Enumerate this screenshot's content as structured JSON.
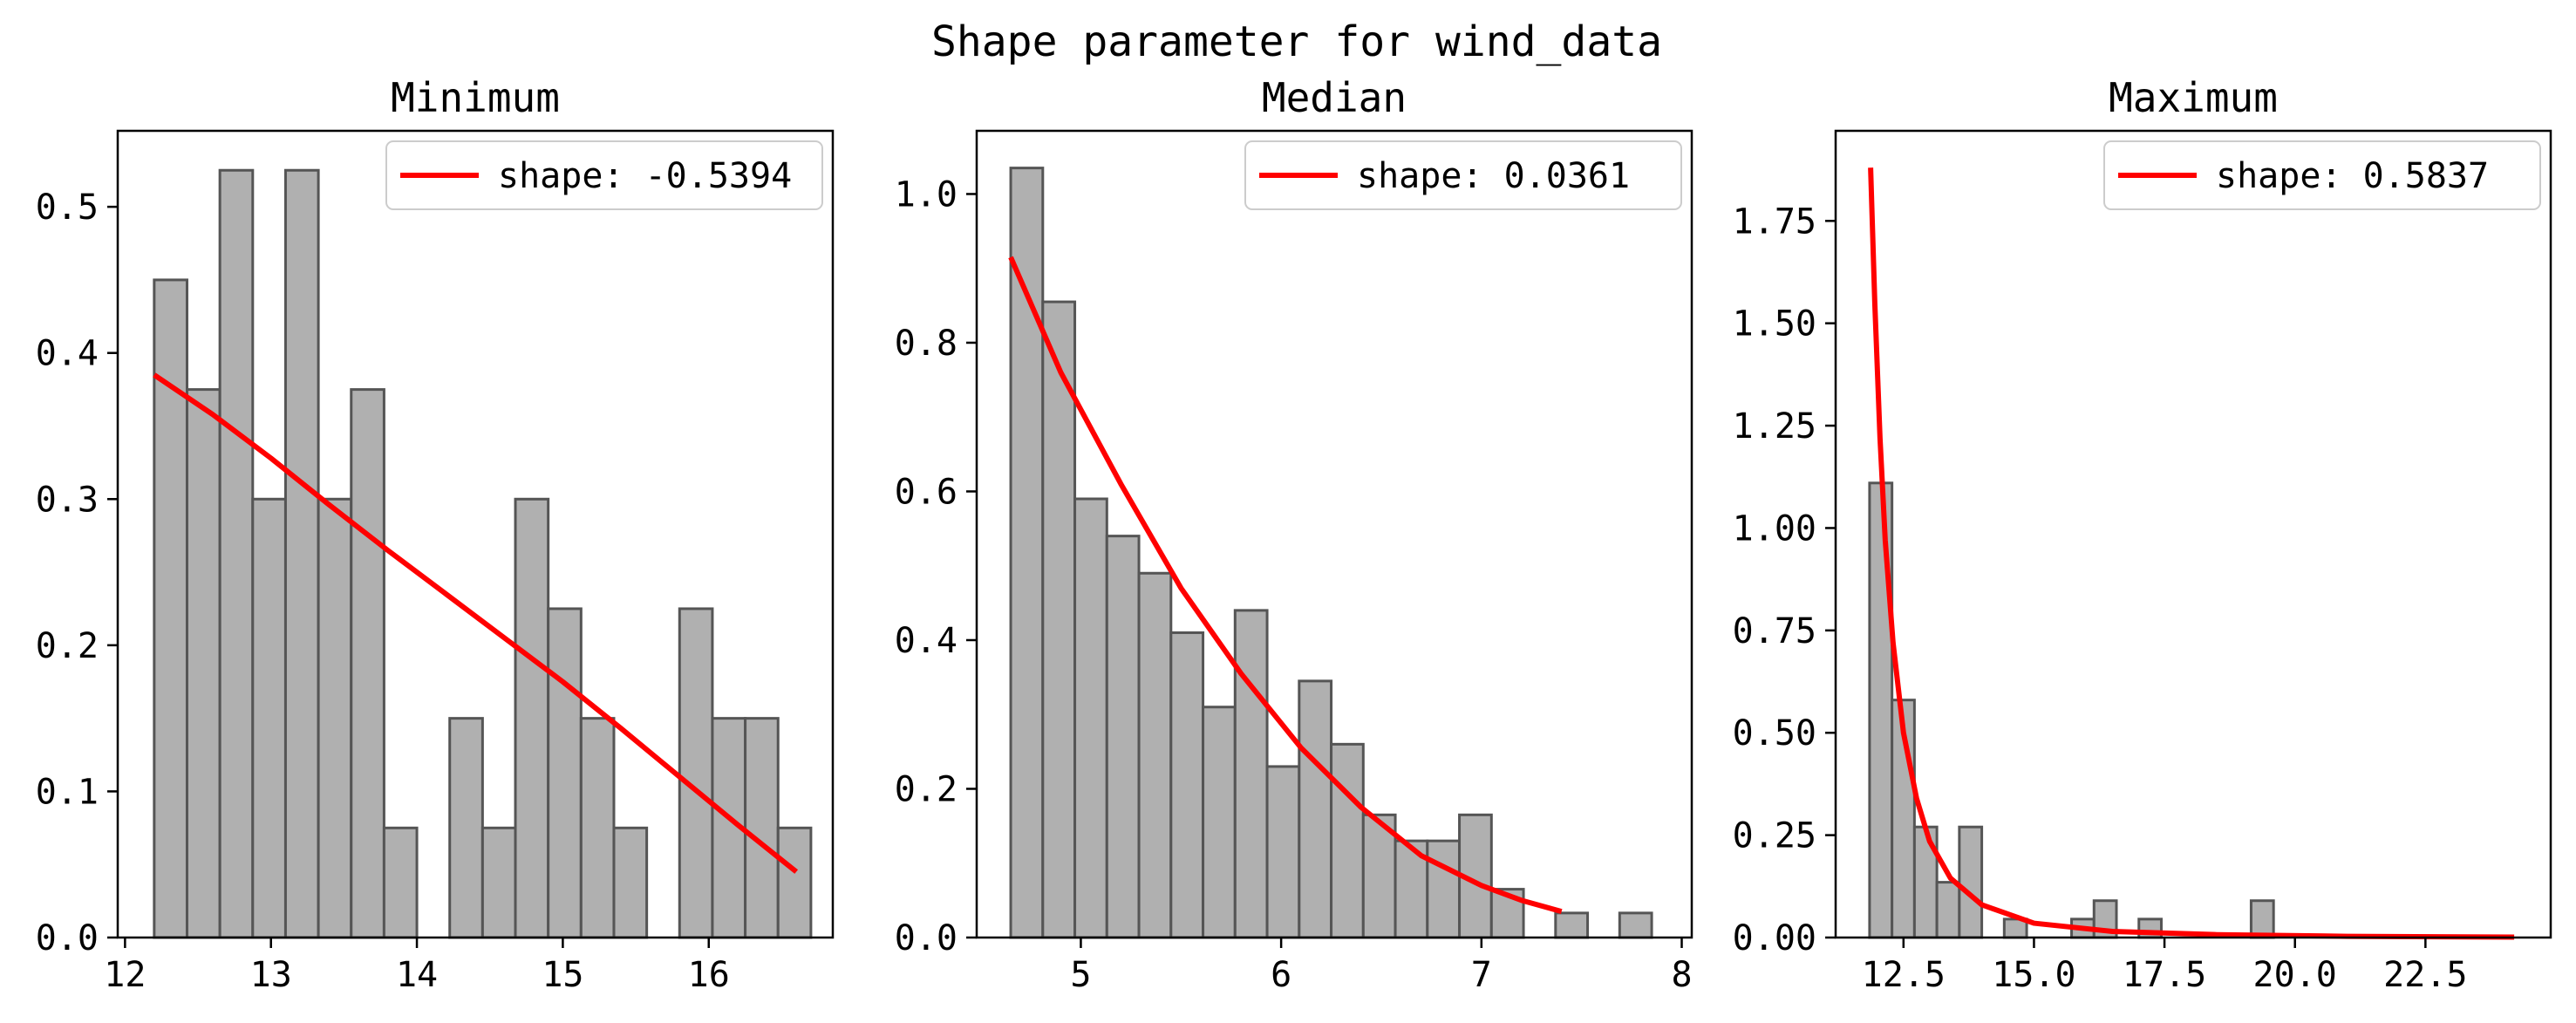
{
  "figure": {
    "title": "Shape parameter for wind_data"
  },
  "chart_data": [
    {
      "type": "bar",
      "title": "Minimum",
      "xlabel": "",
      "ylabel": "",
      "xlim": [
        11.95,
        16.85
      ],
      "ylim": [
        0,
        0.552
      ],
      "xticks": [
        12,
        13,
        14,
        15,
        16
      ],
      "yticks": [
        0.0,
        0.1,
        0.2,
        0.3,
        0.4,
        0.5
      ],
      "ytick_decimals": 1,
      "bin_edges": [
        12.2,
        12.425,
        12.65,
        12.875,
        13.1,
        13.325,
        13.55,
        13.775,
        14.0,
        14.225,
        14.45,
        14.675,
        14.9,
        15.125,
        15.35,
        15.575,
        15.8,
        16.025,
        16.25,
        16.475,
        16.7
      ],
      "hist_values": [
        0.45,
        0.375,
        0.525,
        0.3,
        0.525,
        0.3,
        0.375,
        0.075,
        0.0,
        0.15,
        0.075,
        0.3,
        0.225,
        0.15,
        0.075,
        0.0,
        0.225,
        0.15,
        0.15,
        0.075
      ],
      "fit_curve": {
        "x": [
          12.2,
          12.6,
          13.0,
          13.4,
          13.8,
          14.2,
          14.6,
          15.0,
          15.4,
          15.8,
          16.2,
          16.6
        ],
        "y": [
          0.385,
          0.358,
          0.328,
          0.296,
          0.265,
          0.235,
          0.205,
          0.175,
          0.143,
          0.11,
          0.077,
          0.045
        ]
      },
      "legend": {
        "label": "shape: -0.5394",
        "placement": "upper right"
      },
      "colors": {
        "bar": "#b0b0b0",
        "edge": "#555555",
        "line": "#ff0000"
      }
    },
    {
      "type": "bar",
      "title": "Median",
      "xlabel": "",
      "ylabel": "",
      "xlim": [
        4.48,
        8.05
      ],
      "ylim": [
        0,
        1.085
      ],
      "xticks": [
        5,
        6,
        7,
        8
      ],
      "yticks": [
        0.0,
        0.2,
        0.4,
        0.6,
        0.8,
        1.0
      ],
      "ytick_decimals": 1,
      "bin_edges": [
        4.65,
        4.81,
        4.97,
        5.13,
        5.29,
        5.45,
        5.61,
        5.77,
        5.93,
        6.09,
        6.25,
        6.41,
        6.57,
        6.73,
        6.89,
        7.05,
        7.21,
        7.37,
        7.53,
        7.69,
        7.85
      ],
      "hist_values": [
        1.035,
        0.855,
        0.59,
        0.54,
        0.49,
        0.41,
        0.31,
        0.44,
        0.23,
        0.345,
        0.26,
        0.165,
        0.13,
        0.13,
        0.165,
        0.065,
        0.0,
        0.033,
        0.0,
        0.033
      ],
      "fit_curve": {
        "x": [
          4.65,
          4.9,
          5.2,
          5.5,
          5.8,
          6.1,
          6.4,
          6.7,
          7.0,
          7.2,
          7.4
        ],
        "y": [
          0.915,
          0.76,
          0.61,
          0.47,
          0.355,
          0.255,
          0.175,
          0.11,
          0.07,
          0.05,
          0.035
        ]
      },
      "legend": {
        "label": "shape: 0.0361",
        "placement": "upper right"
      },
      "colors": {
        "bar": "#b0b0b0",
        "edge": "#555555",
        "line": "#ff0000"
      }
    },
    {
      "type": "bar",
      "title": "Maximum",
      "xlabel": "",
      "ylabel": "",
      "xlim": [
        11.2,
        24.9
      ],
      "ylim": [
        0,
        1.97
      ],
      "xticks": [
        12.5,
        15.0,
        17.5,
        20.0,
        22.5
      ],
      "yticks": [
        0.0,
        0.25,
        0.5,
        0.75,
        1.0,
        1.25,
        1.5,
        1.75
      ],
      "ytick_decimals": 2,
      "bin_edges": [
        11.85,
        12.28,
        12.71,
        13.14,
        13.57,
        14.0,
        14.43,
        14.86,
        15.29,
        15.72,
        16.15,
        16.58,
        17.01,
        17.44,
        17.87,
        18.3,
        18.73,
        19.16,
        19.59
      ],
      "hist_values": [
        1.11,
        0.58,
        0.27,
        0.135,
        0.27,
        0.0,
        0.045,
        0.0,
        0.0,
        0.045,
        0.09,
        0.0,
        0.045,
        0.0,
        0.0,
        0.0,
        0.0,
        0.09
      ],
      "fit_curve": {
        "x": [
          11.87,
          11.95,
          12.05,
          12.15,
          12.3,
          12.5,
          12.75,
          13.0,
          13.4,
          14.0,
          15.0,
          16.5,
          18.5,
          21.0,
          24.2
        ],
        "y": [
          1.88,
          1.55,
          1.22,
          0.97,
          0.72,
          0.5,
          0.34,
          0.235,
          0.145,
          0.08,
          0.035,
          0.015,
          0.007,
          0.003,
          0.001
        ]
      },
      "legend": {
        "label": "shape: 0.5837",
        "placement": "upper right"
      },
      "colors": {
        "bar": "#b0b0b0",
        "edge": "#555555",
        "line": "#ff0000"
      }
    }
  ]
}
